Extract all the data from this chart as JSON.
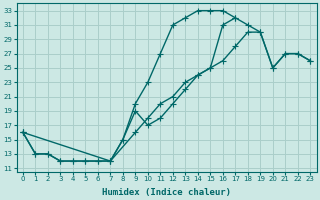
{
  "title": "",
  "xlabel": "Humidex (Indice chaleur)",
  "ylabel": "",
  "background_color": "#cce8e4",
  "grid_color": "#aaceca",
  "line_color": "#006868",
  "xlim": [
    -0.5,
    23.5
  ],
  "ylim": [
    10.5,
    34
  ],
  "xticks": [
    0,
    1,
    2,
    3,
    4,
    5,
    6,
    7,
    8,
    9,
    10,
    11,
    12,
    13,
    14,
    15,
    16,
    17,
    18,
    19,
    20,
    21,
    22,
    23
  ],
  "yticks": [
    11,
    13,
    15,
    17,
    19,
    21,
    23,
    25,
    27,
    29,
    31,
    33
  ],
  "line1_x": [
    0,
    1,
    2,
    3,
    4,
    5,
    6,
    7,
    8,
    9,
    10,
    11,
    12,
    13,
    14,
    15,
    16,
    17
  ],
  "line1_y": [
    16,
    13,
    13,
    12,
    12,
    12,
    12,
    12,
    15,
    20,
    23,
    27,
    31,
    32,
    33,
    33,
    33,
    32
  ],
  "line2_x": [
    0,
    1,
    2,
    3,
    4,
    5,
    6,
    7,
    8,
    9,
    10,
    11,
    12,
    13,
    14,
    15,
    16,
    17,
    18,
    19,
    20,
    21,
    22,
    23
  ],
  "line2_y": [
    16,
    13,
    13,
    12,
    12,
    12,
    12,
    12,
    15,
    19,
    17,
    18,
    20,
    22,
    24,
    25,
    26,
    28,
    30,
    30,
    25,
    27,
    27,
    26
  ],
  "line3_x": [
    0,
    7,
    9,
    10,
    11,
    12,
    13,
    14,
    15,
    16,
    17,
    18,
    19,
    20,
    21,
    22,
    23
  ],
  "line3_y": [
    16,
    12,
    16,
    18,
    20,
    21,
    23,
    24,
    25,
    31,
    32,
    31,
    30,
    25,
    27,
    27,
    26
  ],
  "markersize": 2.5,
  "linewidth": 1.0
}
